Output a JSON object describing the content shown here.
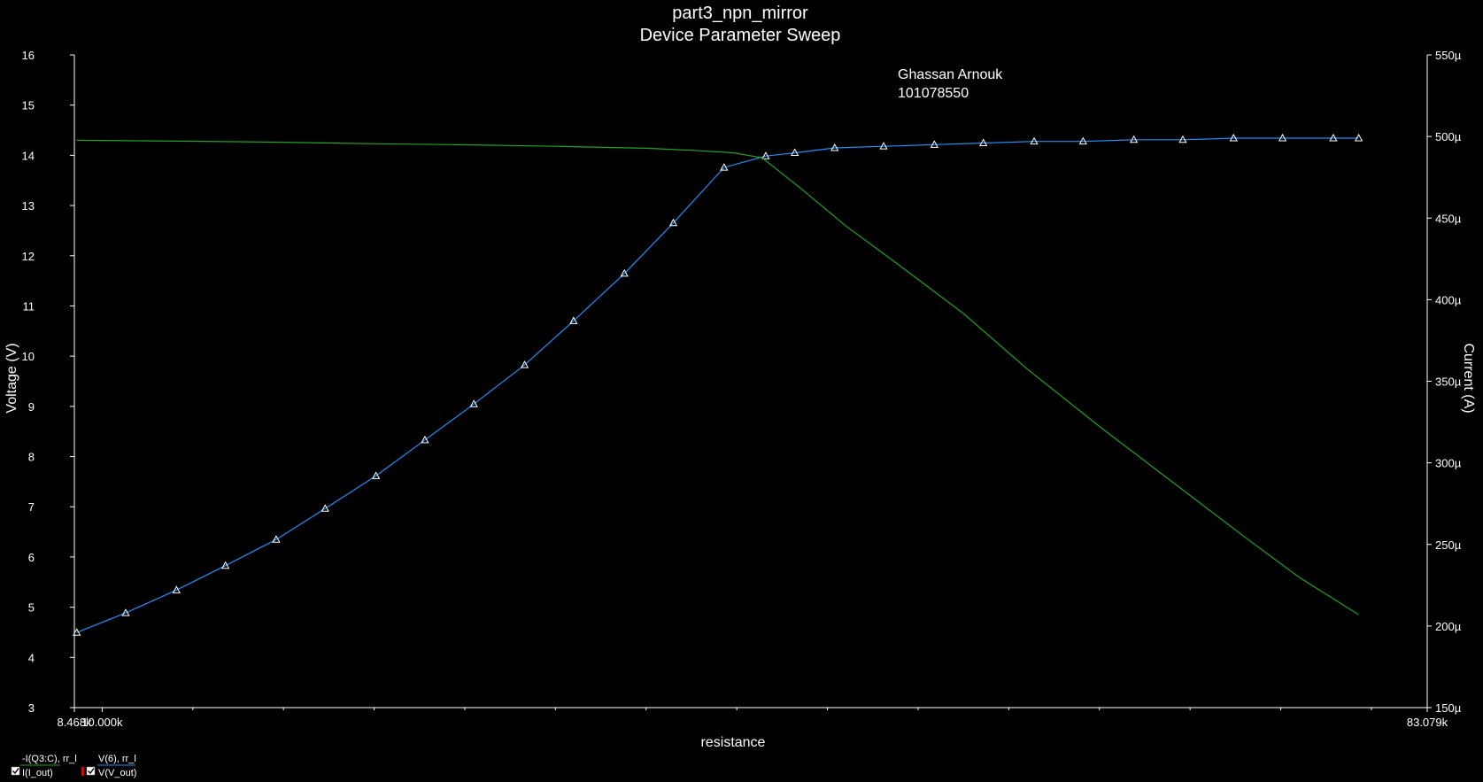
{
  "chart_data": {
    "type": "line",
    "title": "part3_npn_mirror",
    "subtitle": "Device Parameter Sweep",
    "annotation": [
      "Ghassan Arnouk",
      "101078550"
    ],
    "xlabel": "resistance",
    "ylabel_left": "Voltage (V)",
    "ylabel_right": "Current (A)",
    "x_range": [
      8.468,
      83.079
    ],
    "x_unit": "k",
    "x_tick_labels": [
      {
        "value": 8.468,
        "label": "8.468k"
      },
      {
        "value": 10.0,
        "label": "10.000k"
      },
      {
        "value": 83.079,
        "label": "83.079k"
      }
    ],
    "x_minor_ticks": [
      15,
      20,
      25,
      30,
      35,
      40,
      45,
      50,
      55,
      60,
      65,
      70,
      75,
      80
    ],
    "ylim_left": [
      3,
      16
    ],
    "left_ticks": [
      3,
      4,
      5,
      6,
      7,
      8,
      9,
      10,
      11,
      12,
      13,
      14,
      15,
      16
    ],
    "ylim_right": [
      150,
      550
    ],
    "right_ticks": [
      {
        "value": 150,
        "label": "150µ"
      },
      {
        "value": 200,
        "label": "200µ"
      },
      {
        "value": 250,
        "label": "250µ"
      },
      {
        "value": 300,
        "label": "300µ"
      },
      {
        "value": 350,
        "label": "350µ"
      },
      {
        "value": 400,
        "label": "400µ"
      },
      {
        "value": 450,
        "label": "450µ"
      },
      {
        "value": 500,
        "label": "500µ"
      },
      {
        "value": 550,
        "label": "550µ"
      }
    ],
    "grid": false,
    "series": [
      {
        "name": "-I(Q3:C), rr_l",
        "legend_label": "I(I_out)",
        "color": "#1e90ff",
        "axis": "right",
        "marker": "triangle",
        "x": [
          8.6,
          11.3,
          14.1,
          16.8,
          19.6,
          22.3,
          25.1,
          27.8,
          30.5,
          33.3,
          36.0,
          38.8,
          41.5,
          44.3,
          46.6,
          48.2,
          50.4,
          53.1,
          55.9,
          58.6,
          61.4,
          64.1,
          66.9,
          69.6,
          72.4,
          75.1,
          77.9,
          79.3
        ],
        "y": [
          196,
          208,
          222,
          237,
          253,
          272,
          292,
          314,
          336,
          360,
          387,
          416,
          447,
          481,
          488,
          490,
          493,
          494,
          495,
          496,
          497,
          497,
          498,
          498,
          499,
          499,
          499,
          499
        ]
      },
      {
        "name": "V(6), rr_l",
        "legend_label": "V(V_out)",
        "color": "#1ea51e",
        "axis": "left",
        "marker": "none",
        "x": [
          8.6,
          15,
          20,
          25,
          30,
          35,
          40,
          42.5,
          44.8,
          46.4,
          48.5,
          51,
          54,
          57.5,
          61,
          65,
          69,
          73,
          76,
          79.3
        ],
        "y": [
          14.3,
          14.28,
          14.26,
          14.23,
          14.21,
          14.18,
          14.14,
          14.1,
          14.05,
          13.95,
          13.35,
          12.6,
          11.8,
          10.85,
          9.75,
          8.6,
          7.5,
          6.4,
          5.6,
          4.85
        ]
      }
    ]
  }
}
